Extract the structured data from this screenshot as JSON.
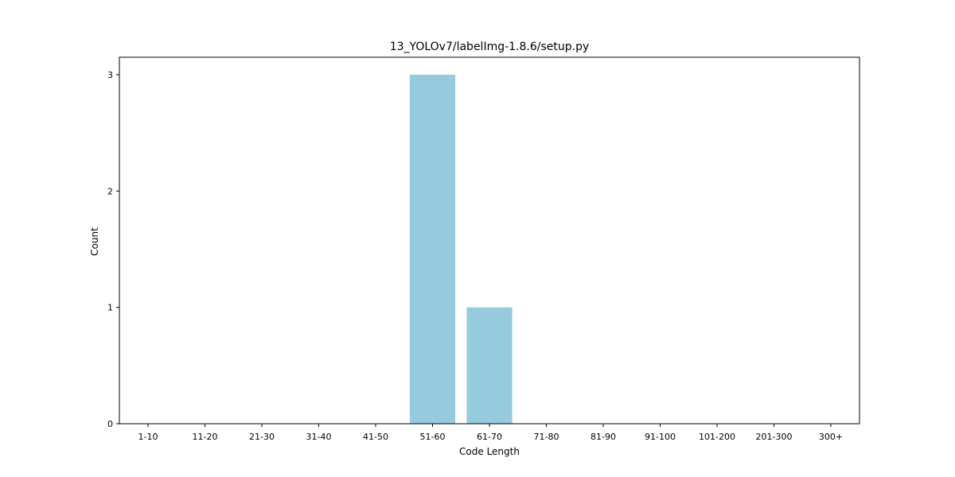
{
  "chart_data": {
    "type": "bar",
    "title": "13_YOLOv7/labelImg-1.8.6/setup.py",
    "xlabel": "Code Length",
    "ylabel": "Count",
    "categories": [
      "1-10",
      "11-20",
      "21-30",
      "31-40",
      "41-50",
      "51-60",
      "61-70",
      "71-80",
      "81-90",
      "91-100",
      "101-200",
      "201-300",
      "300+"
    ],
    "values": [
      0,
      0,
      0,
      0,
      0,
      3,
      1,
      0,
      0,
      0,
      0,
      0,
      0
    ],
    "yticks": [
      0,
      1,
      2,
      3
    ],
    "ylim": [
      0,
      3.15
    ],
    "bar_color": "#96cadd",
    "grid": false,
    "legend": "none"
  }
}
